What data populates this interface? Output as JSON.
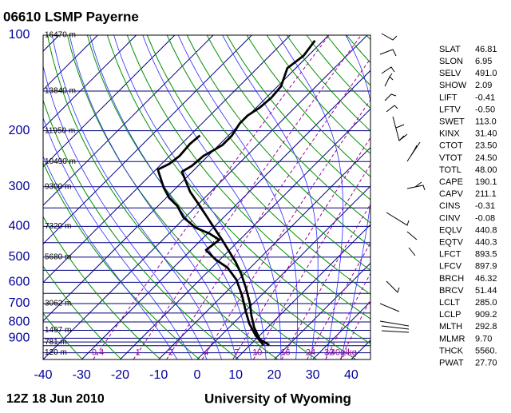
{
  "chart_data": {
    "type": "skewt",
    "title": "06610 LSMP Payerne",
    "date": "12Z 18 Jun 2010",
    "source": "University of Wyoming",
    "xlim": [
      -40,
      45
    ],
    "ylim": [
      1050,
      100
    ],
    "ylog": true,
    "xticks": [
      -40,
      -30,
      -20,
      -10,
      0,
      10,
      20,
      30,
      40
    ],
    "yticks": [
      100,
      200,
      300,
      400,
      500,
      600,
      700,
      800,
      900
    ],
    "isobars": [
      100,
      150,
      200,
      250,
      300,
      350,
      400,
      450,
      500,
      550,
      600,
      650,
      700,
      750,
      800,
      850,
      900,
      925,
      950,
      1000
    ],
    "heights": [
      {
        "value": 100,
        "label": "16470 m"
      },
      {
        "value": 150,
        "label": "13840 m"
      },
      {
        "value": 200,
        "label": "11950 m"
      },
      {
        "value": 250,
        "label": "10490 m"
      },
      {
        "value": 300,
        "label": "9300 m"
      },
      {
        "value": 400,
        "label": "7320 m"
      },
      {
        "value": 500,
        "label": "5680 m"
      },
      {
        "value": 700,
        "label": "3062 m"
      },
      {
        "value": 850,
        "label": "1497 m"
      },
      {
        "value": 925,
        "label": "781 m"
      },
      {
        "value": 1000,
        "label": "120 m"
      }
    ],
    "mixing_ratios": [
      0.4,
      1,
      2,
      4,
      7,
      10,
      16,
      24,
      32,
      {
        "value": 40,
        "label": "40g/kg"
      }
    ],
    "series": [
      {
        "color": "#000000",
        "y": [
          946,
          907,
          833,
          764,
          700,
          624,
          562,
          518,
          480,
          441,
          404,
          370,
          339,
          311,
          269,
          258,
          240,
          230,
          222,
          207,
          190,
          179,
          169,
          157,
          145,
          127,
          116,
          104
        ],
        "x": [
          15.0,
          11.0,
          6.5,
          2.7,
          -0.8,
          -6.0,
          -11.0,
          -15.3,
          -19.7,
          -24.6,
          -29.8,
          -35.0,
          -40.2,
          -45.4,
          -52.7,
          -51.6,
          -51.2,
          -50.0,
          -49.1,
          -49.1,
          -50.2,
          -50.2,
          -49.1,
          -48.7,
          -49.1,
          -52.2,
          -51.2,
          -52.2
        ]
      },
      {
        "color": "#000000",
        "y": [
          946,
          883,
          809,
          742,
          661,
          589,
          540,
          509,
          475,
          441,
          421,
          404,
          375,
          345,
          326,
          302,
          265,
          254,
          240,
          220,
          207
        ],
        "x": [
          13.5,
          9.0,
          4.2,
          0.2,
          -4.9,
          -10.5,
          -15.9,
          -21.1,
          -26.1,
          -25.3,
          -29.6,
          -34.6,
          -40.4,
          -45.0,
          -49.1,
          -53.3,
          -59.5,
          -58.0,
          -57.4,
          -57.8,
          -57.4
        ]
      }
    ]
  },
  "indices": {
    "rows": [
      [
        "SLAT",
        "46.81"
      ],
      [
        "SLON",
        "6.95"
      ],
      [
        "SELV",
        "491.0"
      ],
      [
        "SHOW",
        "2.09"
      ],
      [
        "LIFT",
        "-0.41"
      ],
      [
        "LFTV",
        "-0.50"
      ],
      [
        "SWET",
        "113.0"
      ],
      [
        "KINX",
        "31.40"
      ],
      [
        "CTOT",
        "23.50"
      ],
      [
        "VTOT",
        "24.50"
      ],
      [
        "TOTL",
        "48.00"
      ],
      [
        "CAPE",
        "190.1"
      ],
      [
        "CAPV",
        "211.1"
      ],
      [
        "CINS",
        "-0.31"
      ],
      [
        "CINV",
        "-0.08"
      ],
      [
        "EQLV",
        "440.8"
      ],
      [
        "EQTV",
        "440.3"
      ],
      [
        "LFCT",
        "893.5"
      ],
      [
        "LFCV",
        "897.9"
      ],
      [
        "BRCH",
        "46.32"
      ],
      [
        "BRCV",
        "51.44"
      ],
      [
        "LCLT",
        "285.0"
      ],
      [
        "LCLP",
        "909.2"
      ],
      [
        "MLTH",
        "292.8"
      ],
      [
        "MLMR",
        "9.70"
      ],
      [
        "THCK",
        "5560."
      ],
      [
        "PWAT",
        "27.70"
      ]
    ]
  }
}
